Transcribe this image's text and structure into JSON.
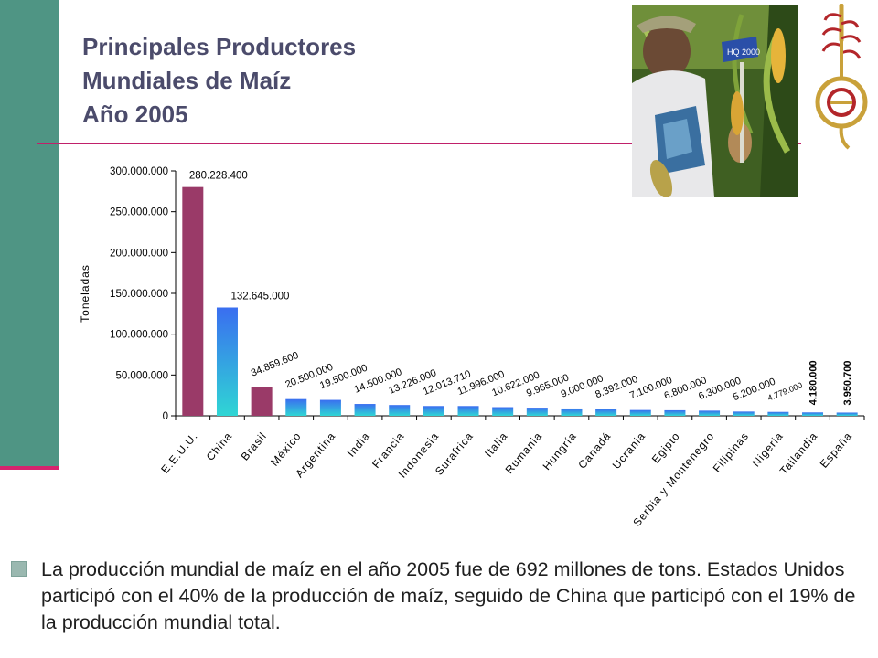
{
  "title": {
    "line1": "Principales Productores",
    "line2": "Mundiales de Maíz",
    "line3": "Año 2005"
  },
  "photo": {
    "sign_text": "HQ 2000"
  },
  "bullet": {
    "text": "La producción mundial de maíz en el año 2005 fue de 692 millones de tons. Estados Unidos participó con el 40% de la producción de maíz, seguido de China que participó con el 19% de la producción mundial total."
  },
  "colors": {
    "band": "#4f9584",
    "accent": "#d6246e",
    "top_bar": "#9a3a68",
    "blue_bar_top": "#3a6ef0",
    "blue_bar_bottom": "#2fd6d4",
    "title": "#4b4b6b"
  },
  "chart_data": {
    "type": "bar",
    "title": "",
    "xlabel": "",
    "ylabel": "Toneladas",
    "ylim": [
      0,
      300000000
    ],
    "yticks": [
      0,
      50000000,
      100000000,
      150000000,
      200000000,
      250000000,
      300000000
    ],
    "ytick_labels": [
      "0",
      "50.000.000",
      "100.000.000",
      "150.000.000",
      "200.000.000",
      "250.000.000",
      "300.000.000"
    ],
    "categories": [
      "E.E.U.U.",
      "China",
      "Brasil",
      "México",
      "Argentina",
      "India",
      "Francia",
      "Indonesia",
      "Surafrica",
      "Italia",
      "Rumania",
      "Hungría",
      "Canadá",
      "Ucrania",
      "Egipto",
      "Serbia y Montenegro",
      "Filipinas",
      "Nigeria",
      "Tailandia",
      "España"
    ],
    "values": [
      280228400,
      132645000,
      34859600,
      20500000,
      19500000,
      14500000,
      13226000,
      12013710,
      11996000,
      10622000,
      9965000,
      9000000,
      8392000,
      7100000,
      6800000,
      6300000,
      5200000,
      4779000,
      4180000,
      3950700
    ],
    "value_labels": [
      "280.228.400",
      "132.645.000",
      "34.859.600",
      "20.500.000",
      "19.500.000",
      "14.500.000",
      "13.226.000",
      "12.013.710",
      "11.996.000",
      "10.622.000",
      "9.965.000",
      "9.000.000",
      "8.392.000",
      "7.100.000",
      "6.800.000",
      "6.300.000",
      "5.200.000",
      "4.779.000",
      "4.180.000",
      "3.950.700"
    ],
    "grid": false,
    "legend": "none"
  }
}
